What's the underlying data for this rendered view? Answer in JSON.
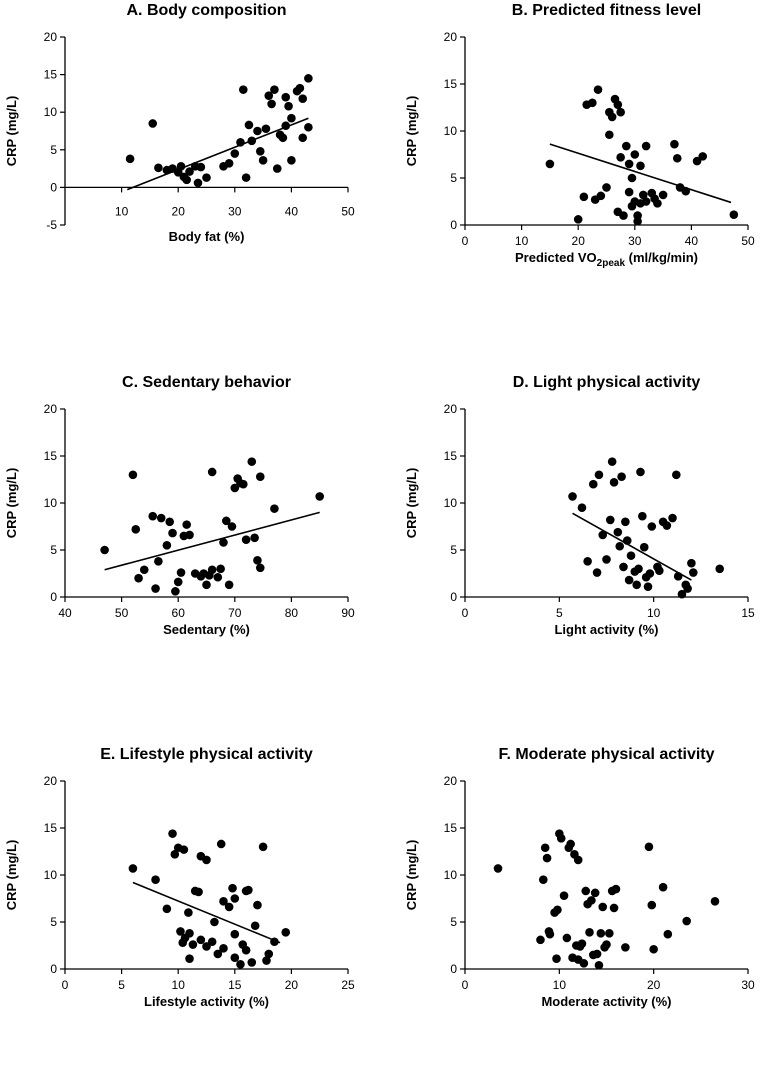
{
  "chart_data": [
    {
      "type": "scatter",
      "title": "A. Body composition",
      "xlabel": "Body fat (%)",
      "ylabel": "CRP (mg/L)",
      "xlim": [
        0,
        50
      ],
      "ylim": [
        -5,
        20
      ],
      "xticks": [
        10,
        20,
        30,
        40,
        50
      ],
      "yticks": [
        -5,
        0,
        5,
        10,
        15,
        20
      ],
      "fit": {
        "x": [
          11,
          43
        ],
        "y": [
          -0.3,
          9.2
        ]
      },
      "points": [
        [
          11.5,
          3.8
        ],
        [
          15.5,
          8.5
        ],
        [
          16.5,
          2.6
        ],
        [
          18,
          2.3
        ],
        [
          19,
          2.5
        ],
        [
          20,
          2
        ],
        [
          20.5,
          2.8
        ],
        [
          21,
          1.4
        ],
        [
          21.5,
          1.0
        ],
        [
          22,
          2.1
        ],
        [
          23,
          2.8
        ],
        [
          23.5,
          0.6
        ],
        [
          24,
          2.7
        ],
        [
          25,
          1.3
        ],
        [
          28,
          2.8
        ],
        [
          29,
          3.2
        ],
        [
          30,
          4.5
        ],
        [
          31,
          6.0
        ],
        [
          31.5,
          13
        ],
        [
          32,
          1.3
        ],
        [
          32.5,
          8.3
        ],
        [
          33,
          6.2
        ],
        [
          34,
          7.5
        ],
        [
          34.5,
          4.8
        ],
        [
          35,
          3.6
        ],
        [
          35.5,
          7.8
        ],
        [
          36,
          12.2
        ],
        [
          36.5,
          11.1
        ],
        [
          37,
          13.0
        ],
        [
          37.5,
          2.5
        ],
        [
          38,
          7.0
        ],
        [
          38.5,
          6.6
        ],
        [
          39,
          8.2
        ],
        [
          39,
          12.0
        ],
        [
          39.5,
          10.8
        ],
        [
          40,
          9.2
        ],
        [
          40,
          3.6
        ],
        [
          41,
          12.8
        ],
        [
          41.5,
          13.2
        ],
        [
          42,
          11.8
        ],
        [
          42,
          6.6
        ],
        [
          43,
          14.5
        ],
        [
          43,
          8.0
        ]
      ]
    },
    {
      "type": "scatter",
      "title": "B. Predicted fitness level",
      "xlabel": "Predicted VO",
      "xlabel_sub": "2peak",
      "xlabel_unit": " (ml/kg/min)",
      "ylabel": "CRP (mg/L)",
      "xlim": [
        0,
        50
      ],
      "ylim": [
        0,
        20
      ],
      "xticks": [
        0,
        10,
        20,
        30,
        40,
        50
      ],
      "yticks": [
        0,
        5,
        10,
        15,
        20
      ],
      "fit": {
        "x": [
          15,
          47
        ],
        "y": [
          8.6,
          2.4
        ]
      },
      "points": [
        [
          15,
          6.5
        ],
        [
          20,
          0.6
        ],
        [
          21,
          3.0
        ],
        [
          21.5,
          12.8
        ],
        [
          22.5,
          13.0
        ],
        [
          23,
          2.7
        ],
        [
          23.5,
          14.4
        ],
        [
          24,
          3.1
        ],
        [
          25,
          4.0
        ],
        [
          25.5,
          12.0
        ],
        [
          25.5,
          9.6
        ],
        [
          26,
          11.5
        ],
        [
          26.5,
          13.4
        ],
        [
          27,
          12.8
        ],
        [
          27,
          1.4
        ],
        [
          27.5,
          12.0
        ],
        [
          27.5,
          7.2
        ],
        [
          28,
          1.0
        ],
        [
          28.5,
          8.4
        ],
        [
          29,
          6.5
        ],
        [
          29,
          3.5
        ],
        [
          29.5,
          5.0
        ],
        [
          29.5,
          2.0
        ],
        [
          30,
          7.5
        ],
        [
          30,
          2.5
        ],
        [
          30.5,
          1.0
        ],
        [
          30.5,
          0.4
        ],
        [
          31,
          6.3
        ],
        [
          31,
          2.3
        ],
        [
          31.5,
          3.2
        ],
        [
          32,
          8.4
        ],
        [
          32,
          2.5
        ],
        [
          33,
          3.4
        ],
        [
          33.5,
          2.8
        ],
        [
          34,
          2.3
        ],
        [
          35,
          3.2
        ],
        [
          37,
          8.6
        ],
        [
          37.5,
          7.1
        ],
        [
          38,
          4.0
        ],
        [
          39,
          3.6
        ],
        [
          41,
          6.8
        ],
        [
          42,
          7.3
        ],
        [
          47.5,
          1.1
        ]
      ]
    },
    {
      "type": "scatter",
      "title": "C. Sedentary behavior",
      "xlabel": "Sedentary (%)",
      "ylabel": "CRP (mg/L)",
      "xlim": [
        40,
        90
      ],
      "ylim": [
        0,
        20
      ],
      "xticks": [
        40,
        50,
        60,
        70,
        80,
        90
      ],
      "yticks": [
        0,
        5,
        10,
        15,
        20
      ],
      "fit": {
        "x": [
          47,
          85
        ],
        "y": [
          2.9,
          9.0
        ]
      },
      "points": [
        [
          47,
          5.0
        ],
        [
          52,
          13.0
        ],
        [
          52.5,
          7.2
        ],
        [
          53,
          2.0
        ],
        [
          54,
          2.9
        ],
        [
          55.5,
          8.6
        ],
        [
          56,
          0.9
        ],
        [
          56.5,
          3.8
        ],
        [
          57,
          8.4
        ],
        [
          58,
          5.5
        ],
        [
          58.5,
          8.0
        ],
        [
          59,
          6.8
        ],
        [
          59.5,
          0.6
        ],
        [
          60,
          1.6
        ],
        [
          60.5,
          2.6
        ],
        [
          61,
          6.5
        ],
        [
          61.5,
          7.7
        ],
        [
          62,
          6.6
        ],
        [
          63,
          2.5
        ],
        [
          64,
          2.2
        ],
        [
          64.5,
          2.5
        ],
        [
          65,
          1.3
        ],
        [
          65.5,
          2.3
        ],
        [
          66,
          13.3
        ],
        [
          66,
          2.9
        ],
        [
          67,
          2.1
        ],
        [
          67.5,
          3.0
        ],
        [
          68,
          5.8
        ],
        [
          68.5,
          8.1
        ],
        [
          69,
          1.3
        ],
        [
          69.5,
          7.5
        ],
        [
          70,
          11.6
        ],
        [
          70.5,
          12.6
        ],
        [
          71,
          12.1
        ],
        [
          71.5,
          12.0
        ],
        [
          72,
          6.1
        ],
        [
          73,
          14.4
        ],
        [
          73.5,
          6.3
        ],
        [
          74,
          3.9
        ],
        [
          74.5,
          12.8
        ],
        [
          74.5,
          3.1
        ],
        [
          77,
          9.4
        ],
        [
          85,
          10.7
        ]
      ]
    },
    {
      "type": "scatter",
      "title": "D. Light physical activity",
      "xlabel": "Light activity (%)",
      "ylabel": "CRP (mg/L)",
      "xlim": [
        0,
        15
      ],
      "ylim": [
        0,
        20
      ],
      "xticks": [
        0,
        5,
        10,
        15
      ],
      "yticks": [
        0,
        5,
        10,
        15,
        20
      ],
      "fit": {
        "x": [
          5.7,
          12
        ],
        "y": [
          8.9,
          1.8
        ]
      },
      "points": [
        [
          5.7,
          10.7
        ],
        [
          6.2,
          9.5
        ],
        [
          6.5,
          3.8
        ],
        [
          6.8,
          12.0
        ],
        [
          7,
          2.6
        ],
        [
          7.1,
          13.0
        ],
        [
          7.3,
          6.6
        ],
        [
          7.5,
          4.0
        ],
        [
          7.7,
          8.2
        ],
        [
          7.8,
          14.4
        ],
        [
          7.9,
          12.2
        ],
        [
          8.1,
          6.9
        ],
        [
          8.2,
          5.4
        ],
        [
          8.3,
          12.8
        ],
        [
          8.4,
          3.2
        ],
        [
          8.5,
          8.0
        ],
        [
          8.6,
          6.0
        ],
        [
          8.7,
          1.8
        ],
        [
          8.8,
          4.4
        ],
        [
          9.0,
          2.7
        ],
        [
          9.1,
          1.3
        ],
        [
          9.2,
          3.0
        ],
        [
          9.3,
          13.3
        ],
        [
          9.4,
          8.6
        ],
        [
          9.5,
          5.3
        ],
        [
          9.6,
          2.1
        ],
        [
          9.7,
          1.1
        ],
        [
          9.8,
          2.5
        ],
        [
          9.9,
          7.5
        ],
        [
          10.2,
          3.2
        ],
        [
          10.3,
          2.8
        ],
        [
          10.5,
          8.0
        ],
        [
          10.7,
          7.6
        ],
        [
          11.0,
          8.4
        ],
        [
          11.2,
          13.0
        ],
        [
          11.3,
          2.2
        ],
        [
          11.5,
          0.3
        ],
        [
          11.7,
          1.3
        ],
        [
          11.8,
          0.9
        ],
        [
          12.0,
          3.6
        ],
        [
          12.1,
          2.6
        ],
        [
          13.5,
          3.0
        ]
      ]
    },
    {
      "type": "scatter",
      "title": "E. Lifestyle physical activity",
      "xlabel": "Lifestyle activity (%)",
      "ylabel": "CRP (mg/L)",
      "xlim": [
        0,
        25
      ],
      "ylim": [
        0,
        20
      ],
      "xticks": [
        0,
        5,
        10,
        15,
        20,
        25
      ],
      "yticks": [
        0,
        5,
        10,
        15,
        20
      ],
      "fit": {
        "x": [
          6,
          19
        ],
        "y": [
          9.2,
          2.8
        ]
      },
      "points": [
        [
          6,
          10.7
        ],
        [
          8,
          9.5
        ],
        [
          9,
          6.4
        ],
        [
          9.5,
          14.4
        ],
        [
          9.7,
          12.2
        ],
        [
          10,
          12.9
        ],
        [
          10.2,
          4.0
        ],
        [
          10.4,
          2.8
        ],
        [
          10.5,
          12.7
        ],
        [
          10.6,
          3.3
        ],
        [
          10.9,
          6.0
        ],
        [
          11,
          1.1
        ],
        [
          11,
          3.8
        ],
        [
          11.3,
          2.6
        ],
        [
          11.5,
          8.3
        ],
        [
          11.8,
          8.2
        ],
        [
          12,
          3.1
        ],
        [
          12,
          12.0
        ],
        [
          12.5,
          11.6
        ],
        [
          12.5,
          2.4
        ],
        [
          13,
          2.9
        ],
        [
          13.2,
          5.0
        ],
        [
          13.5,
          1.6
        ],
        [
          13.8,
          13.3
        ],
        [
          14,
          7.2
        ],
        [
          14,
          2.2
        ],
        [
          14.5,
          6.6
        ],
        [
          14.8,
          8.6
        ],
        [
          15,
          7.5
        ],
        [
          15,
          3.7
        ],
        [
          15,
          1.2
        ],
        [
          15.5,
          0.5
        ],
        [
          15.7,
          2.6
        ],
        [
          16,
          8.3
        ],
        [
          16,
          2.0
        ],
        [
          16.2,
          8.4
        ],
        [
          16.5,
          0.7
        ],
        [
          16.8,
          4.6
        ],
        [
          17,
          6.8
        ],
        [
          17.5,
          13.0
        ],
        [
          17.8,
          0.9
        ],
        [
          18,
          1.6
        ],
        [
          18.5,
          2.9
        ],
        [
          19.5,
          3.9
        ]
      ]
    },
    {
      "type": "scatter",
      "title": "F. Moderate physical activity",
      "xlabel": "Moderate activity (%)",
      "ylabel": "CRP (mg/L)",
      "xlim": [
        0,
        30
      ],
      "ylim": [
        0,
        20
      ],
      "xticks": [
        0,
        10,
        20,
        30
      ],
      "yticks": [
        0,
        5,
        10,
        15,
        20
      ],
      "points": [
        [
          3.5,
          10.7
        ],
        [
          8,
          3.1
        ],
        [
          8.3,
          9.5
        ],
        [
          8.5,
          12.9
        ],
        [
          8.7,
          11.8
        ],
        [
          8.9,
          4.0
        ],
        [
          9,
          3.7
        ],
        [
          9.5,
          6.0
        ],
        [
          9.7,
          1.1
        ],
        [
          9.8,
          6.3
        ],
        [
          10,
          14.4
        ],
        [
          10.2,
          13.9
        ],
        [
          10.5,
          7.8
        ],
        [
          10.8,
          3.3
        ],
        [
          11,
          12.9
        ],
        [
          11.2,
          13.3
        ],
        [
          11.4,
          1.2
        ],
        [
          11.6,
          12.2
        ],
        [
          11.8,
          2.5
        ],
        [
          12,
          11.6
        ],
        [
          12,
          1.0
        ],
        [
          12.2,
          2.4
        ],
        [
          12.4,
          2.7
        ],
        [
          12.6,
          0.6
        ],
        [
          12.8,
          8.3
        ],
        [
          13,
          6.9
        ],
        [
          13.2,
          3.9
        ],
        [
          13.4,
          7.3
        ],
        [
          13.6,
          1.5
        ],
        [
          13.8,
          8.1
        ],
        [
          14,
          1.6
        ],
        [
          14.2,
          0.4
        ],
        [
          14.4,
          3.8
        ],
        [
          14.6,
          6.6
        ],
        [
          14.8,
          2.3
        ],
        [
          15,
          2.6
        ],
        [
          15.3,
          3.8
        ],
        [
          15.6,
          8.3
        ],
        [
          15.8,
          6.5
        ],
        [
          16,
          8.5
        ],
        [
          17,
          2.3
        ],
        [
          19.5,
          13.0
        ],
        [
          19.8,
          6.8
        ],
        [
          20,
          2.1
        ],
        [
          21,
          8.7
        ],
        [
          21.5,
          3.7
        ],
        [
          23.5,
          5.1
        ],
        [
          26.5,
          7.2
        ]
      ]
    }
  ]
}
